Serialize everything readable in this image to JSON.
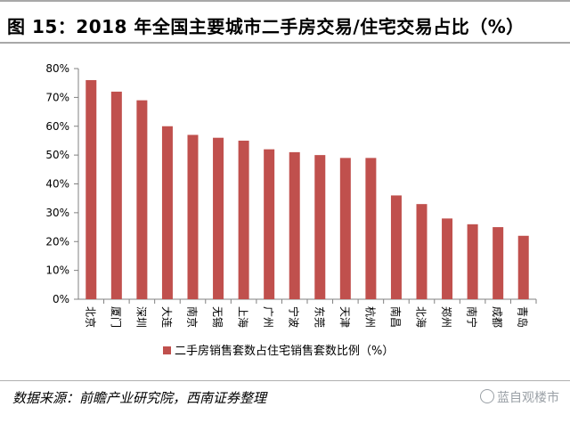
{
  "figure": {
    "title": "图 15：2018 年全国主要城市二手房交易/住宅交易占比（%）",
    "source": "数据来源：前瞻产业研究院，西南证券整理",
    "watermark": "蓝自观楼市"
  },
  "colors": {
    "bar": "#c0504d",
    "axis": "#808080",
    "text": "#000000"
  },
  "chart_data": {
    "type": "bar",
    "title": "",
    "xlabel": "",
    "ylabel": "",
    "categories": [
      "北京",
      "厦门",
      "深圳",
      "大连",
      "南京",
      "无锡",
      "上海",
      "广州",
      "宁波",
      "东莞",
      "天津",
      "杭州",
      "南昌",
      "北海",
      "郑州",
      "南宁",
      "成都",
      "青岛"
    ],
    "series": [
      {
        "name": "二手房销售套数占住宅销售套数比例（%）",
        "values": [
          76,
          72,
          69,
          60,
          57,
          56,
          55,
          52,
          51,
          50,
          49,
          49,
          36,
          33,
          28,
          26,
          25,
          22
        ]
      }
    ],
    "ylim": [
      0,
      80
    ],
    "yticks": [
      "0%",
      "10%",
      "20%",
      "30%",
      "40%",
      "50%",
      "60%",
      "70%",
      "80%"
    ],
    "legend_position": "bottom",
    "grid": false
  }
}
